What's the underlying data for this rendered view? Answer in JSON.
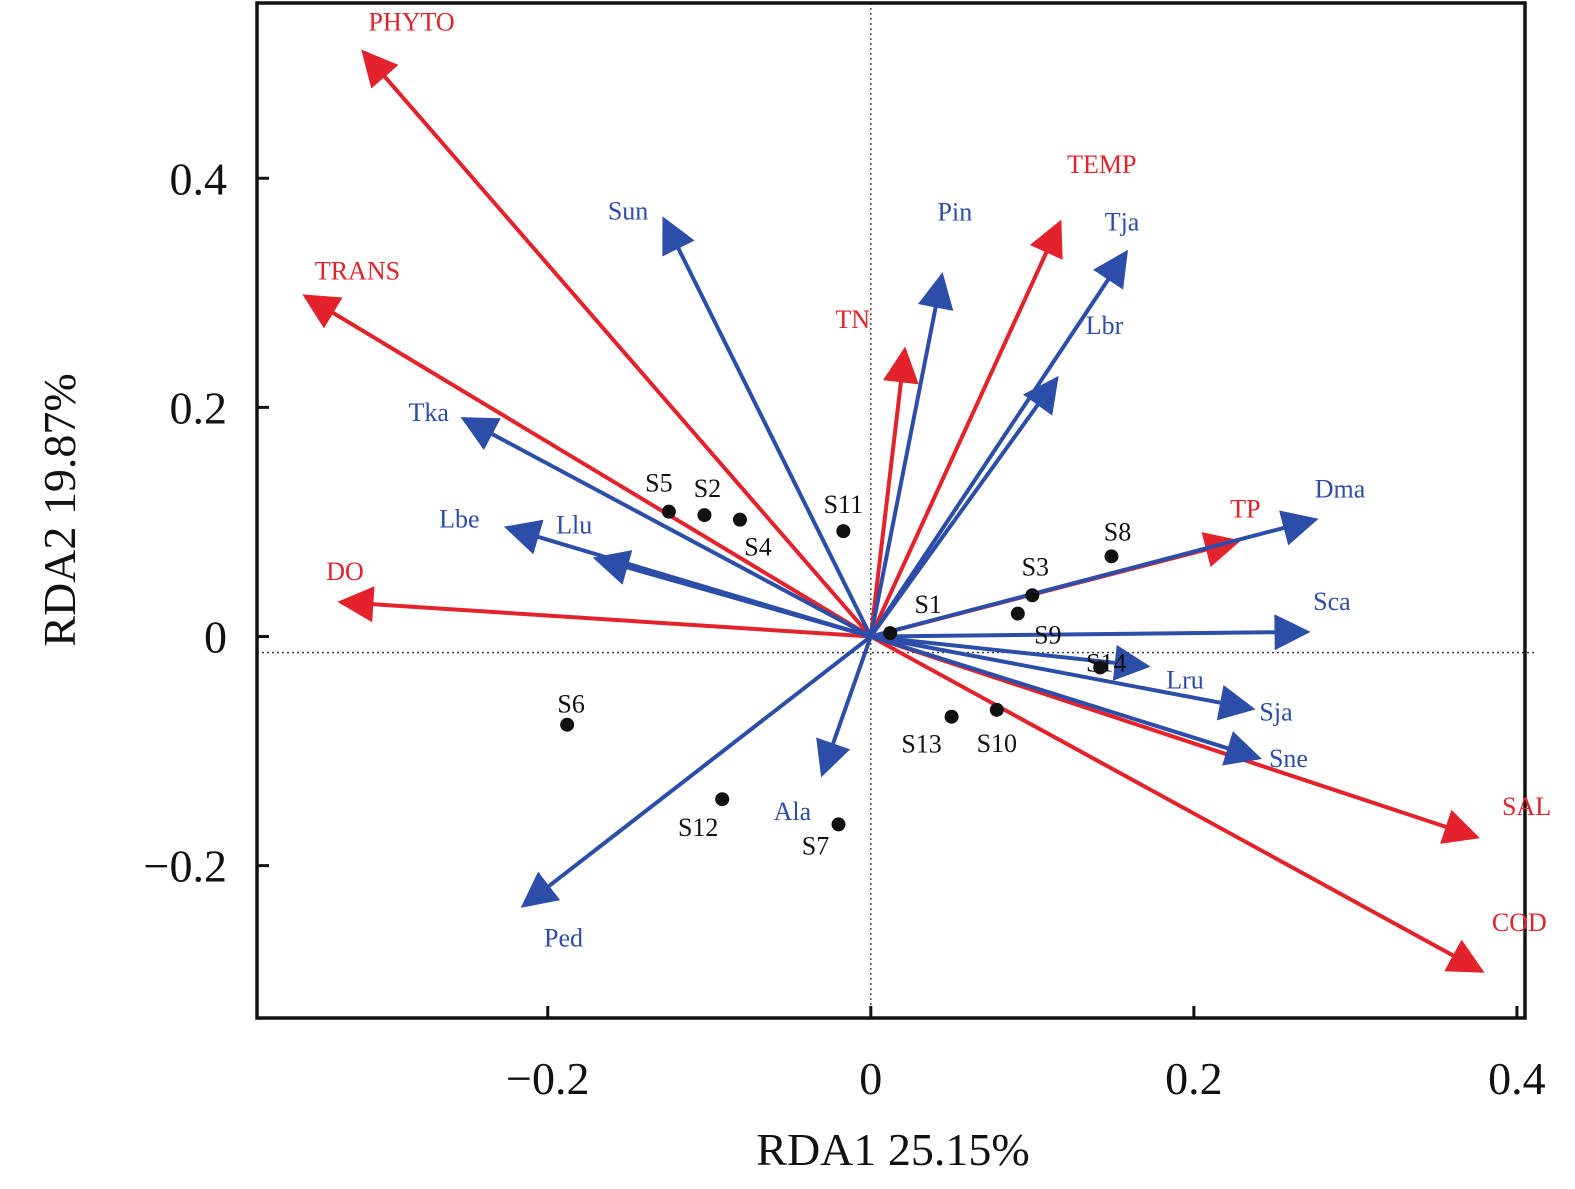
{
  "chart_data": {
    "type": "scatter",
    "subtype": "rda-biplot",
    "title": "",
    "xlabel": "RDA1 25.15%",
    "ylabel": "RDA2 19.87%",
    "xlim": [
      -0.38,
      0.405
    ],
    "ylim": [
      -0.333,
      0.553
    ],
    "x_ticks": [
      {
        "value": -0.2,
        "label": "−0.2"
      },
      {
        "value": 0,
        "label": "0"
      },
      {
        "value": 0.2,
        "label": "0.2"
      },
      {
        "value": 0.4,
        "label": "0.4"
      }
    ],
    "y_ticks": [
      {
        "value": -0.2,
        "label": "−0.2"
      },
      {
        "value": 0,
        "label": "0"
      },
      {
        "value": 0.2,
        "label": "0.2"
      },
      {
        "value": 0.4,
        "label": "0.4"
      }
    ],
    "grid": false,
    "reference_lines": {
      "x": 0,
      "y": -0.014
    },
    "colors": {
      "environment": "#e3222b",
      "species": "#2d4ea8",
      "sites": "#111111",
      "frame": "#111111"
    },
    "series": [
      {
        "name": "environment",
        "kind": "arrows",
        "color": "#e3222b",
        "points": [
          {
            "label": "PHYTO",
            "x": -0.314,
            "y": 0.51
          },
          {
            "label": "TEMP",
            "x": 0.117,
            "y": 0.361
          },
          {
            "label": "TRANS",
            "x": -0.35,
            "y": 0.297
          },
          {
            "label": "TN",
            "x": 0.021,
            "y": 0.25
          },
          {
            "label": "TP",
            "x": 0.227,
            "y": 0.083
          },
          {
            "label": "DO",
            "x": -0.328,
            "y": 0.03
          },
          {
            "label": "SAL",
            "x": 0.375,
            "y": -0.175
          },
          {
            "label": "COD",
            "x": 0.378,
            "y": -0.292
          }
        ]
      },
      {
        "name": "species",
        "kind": "arrows",
        "color": "#2d4ea8",
        "points": [
          {
            "label": "Sun",
            "x": -0.128,
            "y": 0.364
          },
          {
            "label": "Pin",
            "x": 0.044,
            "y": 0.315
          },
          {
            "label": "Tja",
            "x": 0.158,
            "y": 0.335
          },
          {
            "label": "Lbr",
            "x": 0.115,
            "y": 0.225
          },
          {
            "label": "Tka",
            "x": -0.252,
            "y": 0.19
          },
          {
            "label": "Lbe",
            "x": -0.225,
            "y": 0.095
          },
          {
            "label": "Llu",
            "x": -0.17,
            "y": 0.068
          },
          {
            "label": "Dma",
            "x": 0.275,
            "y": 0.102
          },
          {
            "label": "Sca",
            "x": 0.27,
            "y": 0.004
          },
          {
            "label": "Lru",
            "x": 0.171,
            "y": -0.026
          },
          {
            "label": "Sja",
            "x": 0.236,
            "y": -0.063
          },
          {
            "label": "Sne",
            "x": 0.24,
            "y": -0.106
          },
          {
            "label": "Ala",
            "x": -0.03,
            "y": -0.12
          },
          {
            "label": "Ped",
            "x": -0.215,
            "y": -0.235
          }
        ]
      },
      {
        "name": "sites",
        "kind": "points",
        "color": "#111111",
        "points": [
          {
            "label": "S1",
            "x": 0.012,
            "y": 0.003
          },
          {
            "label": "S2",
            "x": -0.103,
            "y": 0.106
          },
          {
            "label": "S3",
            "x": 0.1,
            "y": 0.036
          },
          {
            "label": "S4",
            "x": -0.081,
            "y": 0.102
          },
          {
            "label": "S5",
            "x": -0.125,
            "y": 0.109
          },
          {
            "label": "S6",
            "x": -0.188,
            "y": -0.077
          },
          {
            "label": "S7",
            "x": -0.02,
            "y": -0.164
          },
          {
            "label": "S8",
            "x": 0.149,
            "y": 0.07
          },
          {
            "label": "S9",
            "x": 0.091,
            "y": 0.02
          },
          {
            "label": "S10",
            "x": 0.078,
            "y": -0.064
          },
          {
            "label": "S11",
            "x": -0.017,
            "y": 0.092
          },
          {
            "label": "S12",
            "x": -0.092,
            "y": -0.142
          },
          {
            "label": "S13",
            "x": 0.05,
            "y": -0.07
          },
          {
            "label": "S14",
            "x": 0.142,
            "y": -0.027
          }
        ]
      }
    ]
  }
}
